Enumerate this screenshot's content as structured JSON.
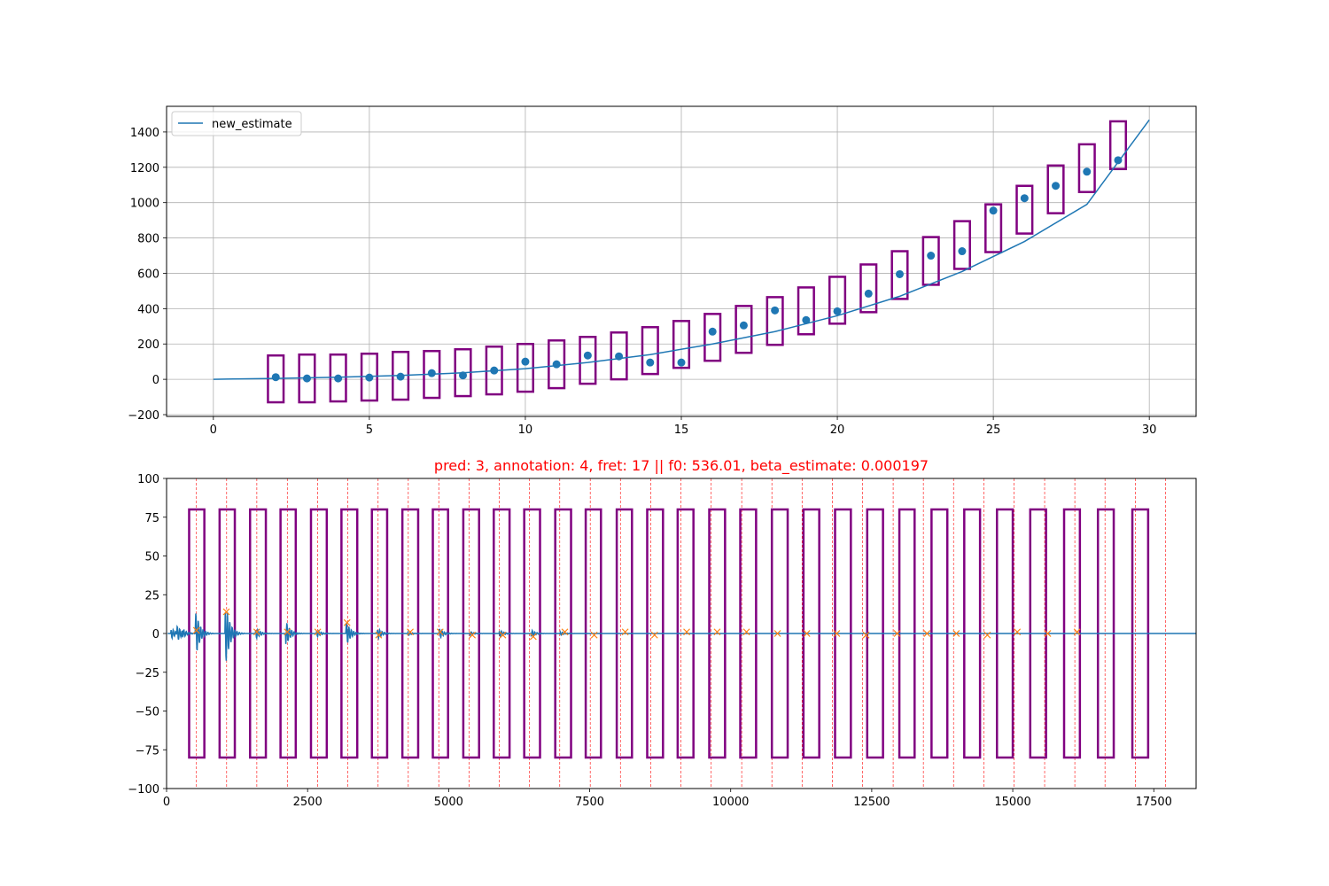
{
  "chart_data": [
    {
      "type": "scatter",
      "title": "",
      "xlabel": "",
      "ylabel": "",
      "xlim": [
        -1.5,
        31.5
      ],
      "ylim": [
        -210,
        1545
      ],
      "xticks": [
        0,
        5,
        10,
        15,
        20,
        25,
        30
      ],
      "yticks": [
        -200,
        0,
        200,
        400,
        600,
        800,
        1000,
        1200,
        1400
      ],
      "grid": true,
      "legend_position": "top-left",
      "series": [
        {
          "name": "new_estimate",
          "kind": "line",
          "color": "#1f77b4",
          "x": [
            0,
            2,
            4,
            6,
            8,
            10,
            12,
            14,
            16,
            18,
            20,
            22,
            24,
            26,
            28,
            30
          ],
          "y": [
            0,
            5,
            12,
            22,
            37,
            60,
            95,
            140,
            200,
            270,
            360,
            470,
            610,
            780,
            990,
            1468
          ]
        },
        {
          "kind": "scatter",
          "color": "#1f77b4",
          "x": [
            2,
            3,
            4,
            5,
            6,
            7,
            8,
            9,
            10,
            11,
            12,
            13,
            14,
            15,
            16,
            17,
            18,
            19,
            20,
            21,
            22,
            23,
            24,
            25,
            26,
            27,
            28,
            29
          ],
          "y": [
            12,
            5,
            5,
            10,
            15,
            35,
            22,
            50,
            100,
            85,
            135,
            130,
            95,
            95,
            270,
            305,
            390,
            335,
            385,
            485,
            595,
            700,
            725,
            955,
            1025,
            1095,
            1175,
            1240
          ]
        }
      ],
      "boxes": {
        "color": "#800080",
        "items": [
          {
            "x": 2,
            "low": -130,
            "high": 135
          },
          {
            "x": 3,
            "low": -130,
            "high": 140
          },
          {
            "x": 4,
            "low": -125,
            "high": 140
          },
          {
            "x": 5,
            "low": -120,
            "high": 145
          },
          {
            "x": 6,
            "low": -115,
            "high": 155
          },
          {
            "x": 7,
            "low": -105,
            "high": 160
          },
          {
            "x": 8,
            "low": -95,
            "high": 170
          },
          {
            "x": 9,
            "low": -85,
            "high": 185
          },
          {
            "x": 10,
            "low": -70,
            "high": 200
          },
          {
            "x": 11,
            "low": -50,
            "high": 220
          },
          {
            "x": 12,
            "low": -25,
            "high": 240
          },
          {
            "x": 13,
            "low": 0,
            "high": 265
          },
          {
            "x": 14,
            "low": 30,
            "high": 295
          },
          {
            "x": 15,
            "low": 65,
            "high": 330
          },
          {
            "x": 16,
            "low": 105,
            "high": 370
          },
          {
            "x": 17,
            "low": 150,
            "high": 415
          },
          {
            "x": 18,
            "low": 195,
            "high": 465
          },
          {
            "x": 19,
            "low": 255,
            "high": 520
          },
          {
            "x": 20,
            "low": 315,
            "high": 580
          },
          {
            "x": 21,
            "low": 380,
            "high": 650
          },
          {
            "x": 22,
            "low": 455,
            "high": 725
          },
          {
            "x": 23,
            "low": 535,
            "high": 805
          },
          {
            "x": 24,
            "low": 625,
            "high": 895
          },
          {
            "x": 25,
            "low": 720,
            "high": 990
          },
          {
            "x": 26,
            "low": 825,
            "high": 1095
          },
          {
            "x": 27,
            "low": 940,
            "high": 1210
          },
          {
            "x": 28,
            "low": 1060,
            "high": 1330
          },
          {
            "x": 29,
            "low": 1190,
            "high": 1460
          }
        ]
      }
    },
    {
      "type": "line",
      "title": "pred: 3, annotation: 4, fret: 17 || f0: 536.01, beta_estimate: 0.000197",
      "title_color": "#ff0000",
      "xlabel": "",
      "ylabel": "",
      "xlim": [
        0,
        18250
      ],
      "ylim": [
        -100,
        100
      ],
      "xticks": [
        0,
        2500,
        5000,
        7500,
        10000,
        12500,
        15000,
        17500
      ],
      "yticks": [
        -100,
        -75,
        -50,
        -25,
        0,
        25,
        50,
        75,
        100
      ],
      "grid": false,
      "waveform_color": "#1f77b4",
      "bursts": [
        {
          "x": 100,
          "amp": 3
        },
        {
          "x": 200,
          "amp": 5
        },
        {
          "x": 300,
          "amp": 3
        },
        {
          "x": 530,
          "amp": 13
        },
        {
          "x": 1060,
          "amp": 18
        },
        {
          "x": 1600,
          "amp": 3
        },
        {
          "x": 2130,
          "amp": 7
        },
        {
          "x": 2680,
          "amp": 2
        },
        {
          "x": 3200,
          "amp": 7
        },
        {
          "x": 3760,
          "amp": 3
        },
        {
          "x": 4300,
          "amp": 1
        },
        {
          "x": 4850,
          "amp": 3
        },
        {
          "x": 5400,
          "amp": 1
        },
        {
          "x": 5920,
          "amp": 2
        },
        {
          "x": 6480,
          "amp": 2
        },
        {
          "x": 7000,
          "amp": 1
        }
      ],
      "markers": {
        "color": "#ff7f0e",
        "x": [
          530,
          1060,
          1600,
          2140,
          2680,
          3200,
          3760,
          4320,
          4850,
          5420,
          5960,
          6500,
          7060,
          7580,
          8130,
          8650,
          9220,
          9760,
          10280,
          10830,
          11350,
          11880,
          12400,
          12950,
          13480,
          14000,
          14550,
          15080,
          15620,
          16140
        ],
        "y": [
          2,
          14,
          1,
          1,
          1,
          7,
          -1,
          1,
          1,
          -1,
          -1,
          -2,
          1,
          -1,
          1,
          -1,
          1,
          1,
          1,
          0,
          0,
          0,
          -1,
          0,
          0,
          0,
          -1,
          1,
          0,
          1
        ]
      },
      "vlines": {
        "color": "#ff0000",
        "x": [
          530,
          1065,
          1600,
          2140,
          2675,
          3210,
          3750,
          4285,
          4825,
          5360,
          5895,
          6435,
          6970,
          7510,
          8045,
          8580,
          9120,
          9655,
          10195,
          10730,
          11265,
          11805,
          12340,
          12880,
          13415,
          13950,
          14490,
          15025,
          15565,
          16100,
          16635,
          17175,
          17710
        ]
      },
      "boxes": {
        "color": "#800080",
        "low": -80,
        "high": 80,
        "items": [
          {
            "x0": 400,
            "x1": 670
          },
          {
            "x0": 940,
            "x1": 1210
          },
          {
            "x0": 1480,
            "x1": 1760
          },
          {
            "x0": 2020,
            "x1": 2290
          },
          {
            "x0": 2560,
            "x1": 2840
          },
          {
            "x0": 3100,
            "x1": 3380
          },
          {
            "x0": 3640,
            "x1": 3910
          },
          {
            "x0": 4180,
            "x1": 4460
          },
          {
            "x0": 4720,
            "x1": 4990
          },
          {
            "x0": 5260,
            "x1": 5540
          },
          {
            "x0": 5800,
            "x1": 6080
          },
          {
            "x0": 6340,
            "x1": 6620
          },
          {
            "x0": 6890,
            "x1": 7170
          },
          {
            "x0": 7430,
            "x1": 7700
          },
          {
            "x0": 7980,
            "x1": 8250
          },
          {
            "x0": 8520,
            "x1": 8800
          },
          {
            "x0": 9060,
            "x1": 9340
          },
          {
            "x0": 9620,
            "x1": 9900
          },
          {
            "x0": 10170,
            "x1": 10450
          },
          {
            "x0": 10730,
            "x1": 11010
          },
          {
            "x0": 11290,
            "x1": 11570
          },
          {
            "x0": 11850,
            "x1": 12130
          },
          {
            "x0": 12420,
            "x1": 12700
          },
          {
            "x0": 12990,
            "x1": 13260
          },
          {
            "x0": 13560,
            "x1": 13840
          },
          {
            "x0": 14140,
            "x1": 14420
          },
          {
            "x0": 14720,
            "x1": 15000
          },
          {
            "x0": 15310,
            "x1": 15590
          },
          {
            "x0": 15910,
            "x1": 16190
          },
          {
            "x0": 16510,
            "x1": 16790
          },
          {
            "x0": 17120,
            "x1": 17400
          }
        ]
      }
    }
  ]
}
